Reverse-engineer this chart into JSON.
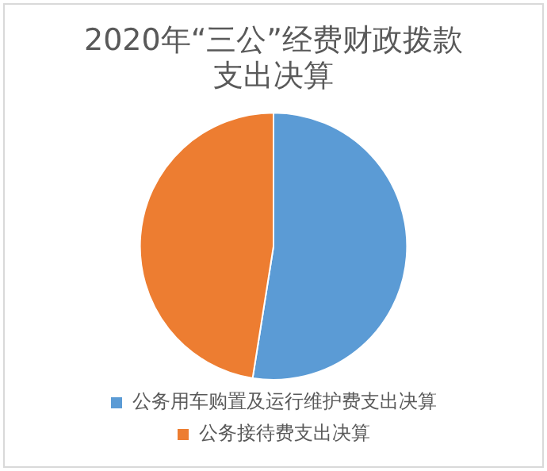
{
  "chart_data": {
    "type": "pie",
    "title": [
      "2020年“三公”经费财政拨款",
      "支出决算"
    ],
    "categories": [
      "公务用车购置及运行维护费支出决算",
      "公务接待费支出决算"
    ],
    "values": [
      52.5,
      47.5
    ],
    "colors": [
      "#5b9bd5",
      "#ed7d31"
    ],
    "legend": "bottom"
  }
}
